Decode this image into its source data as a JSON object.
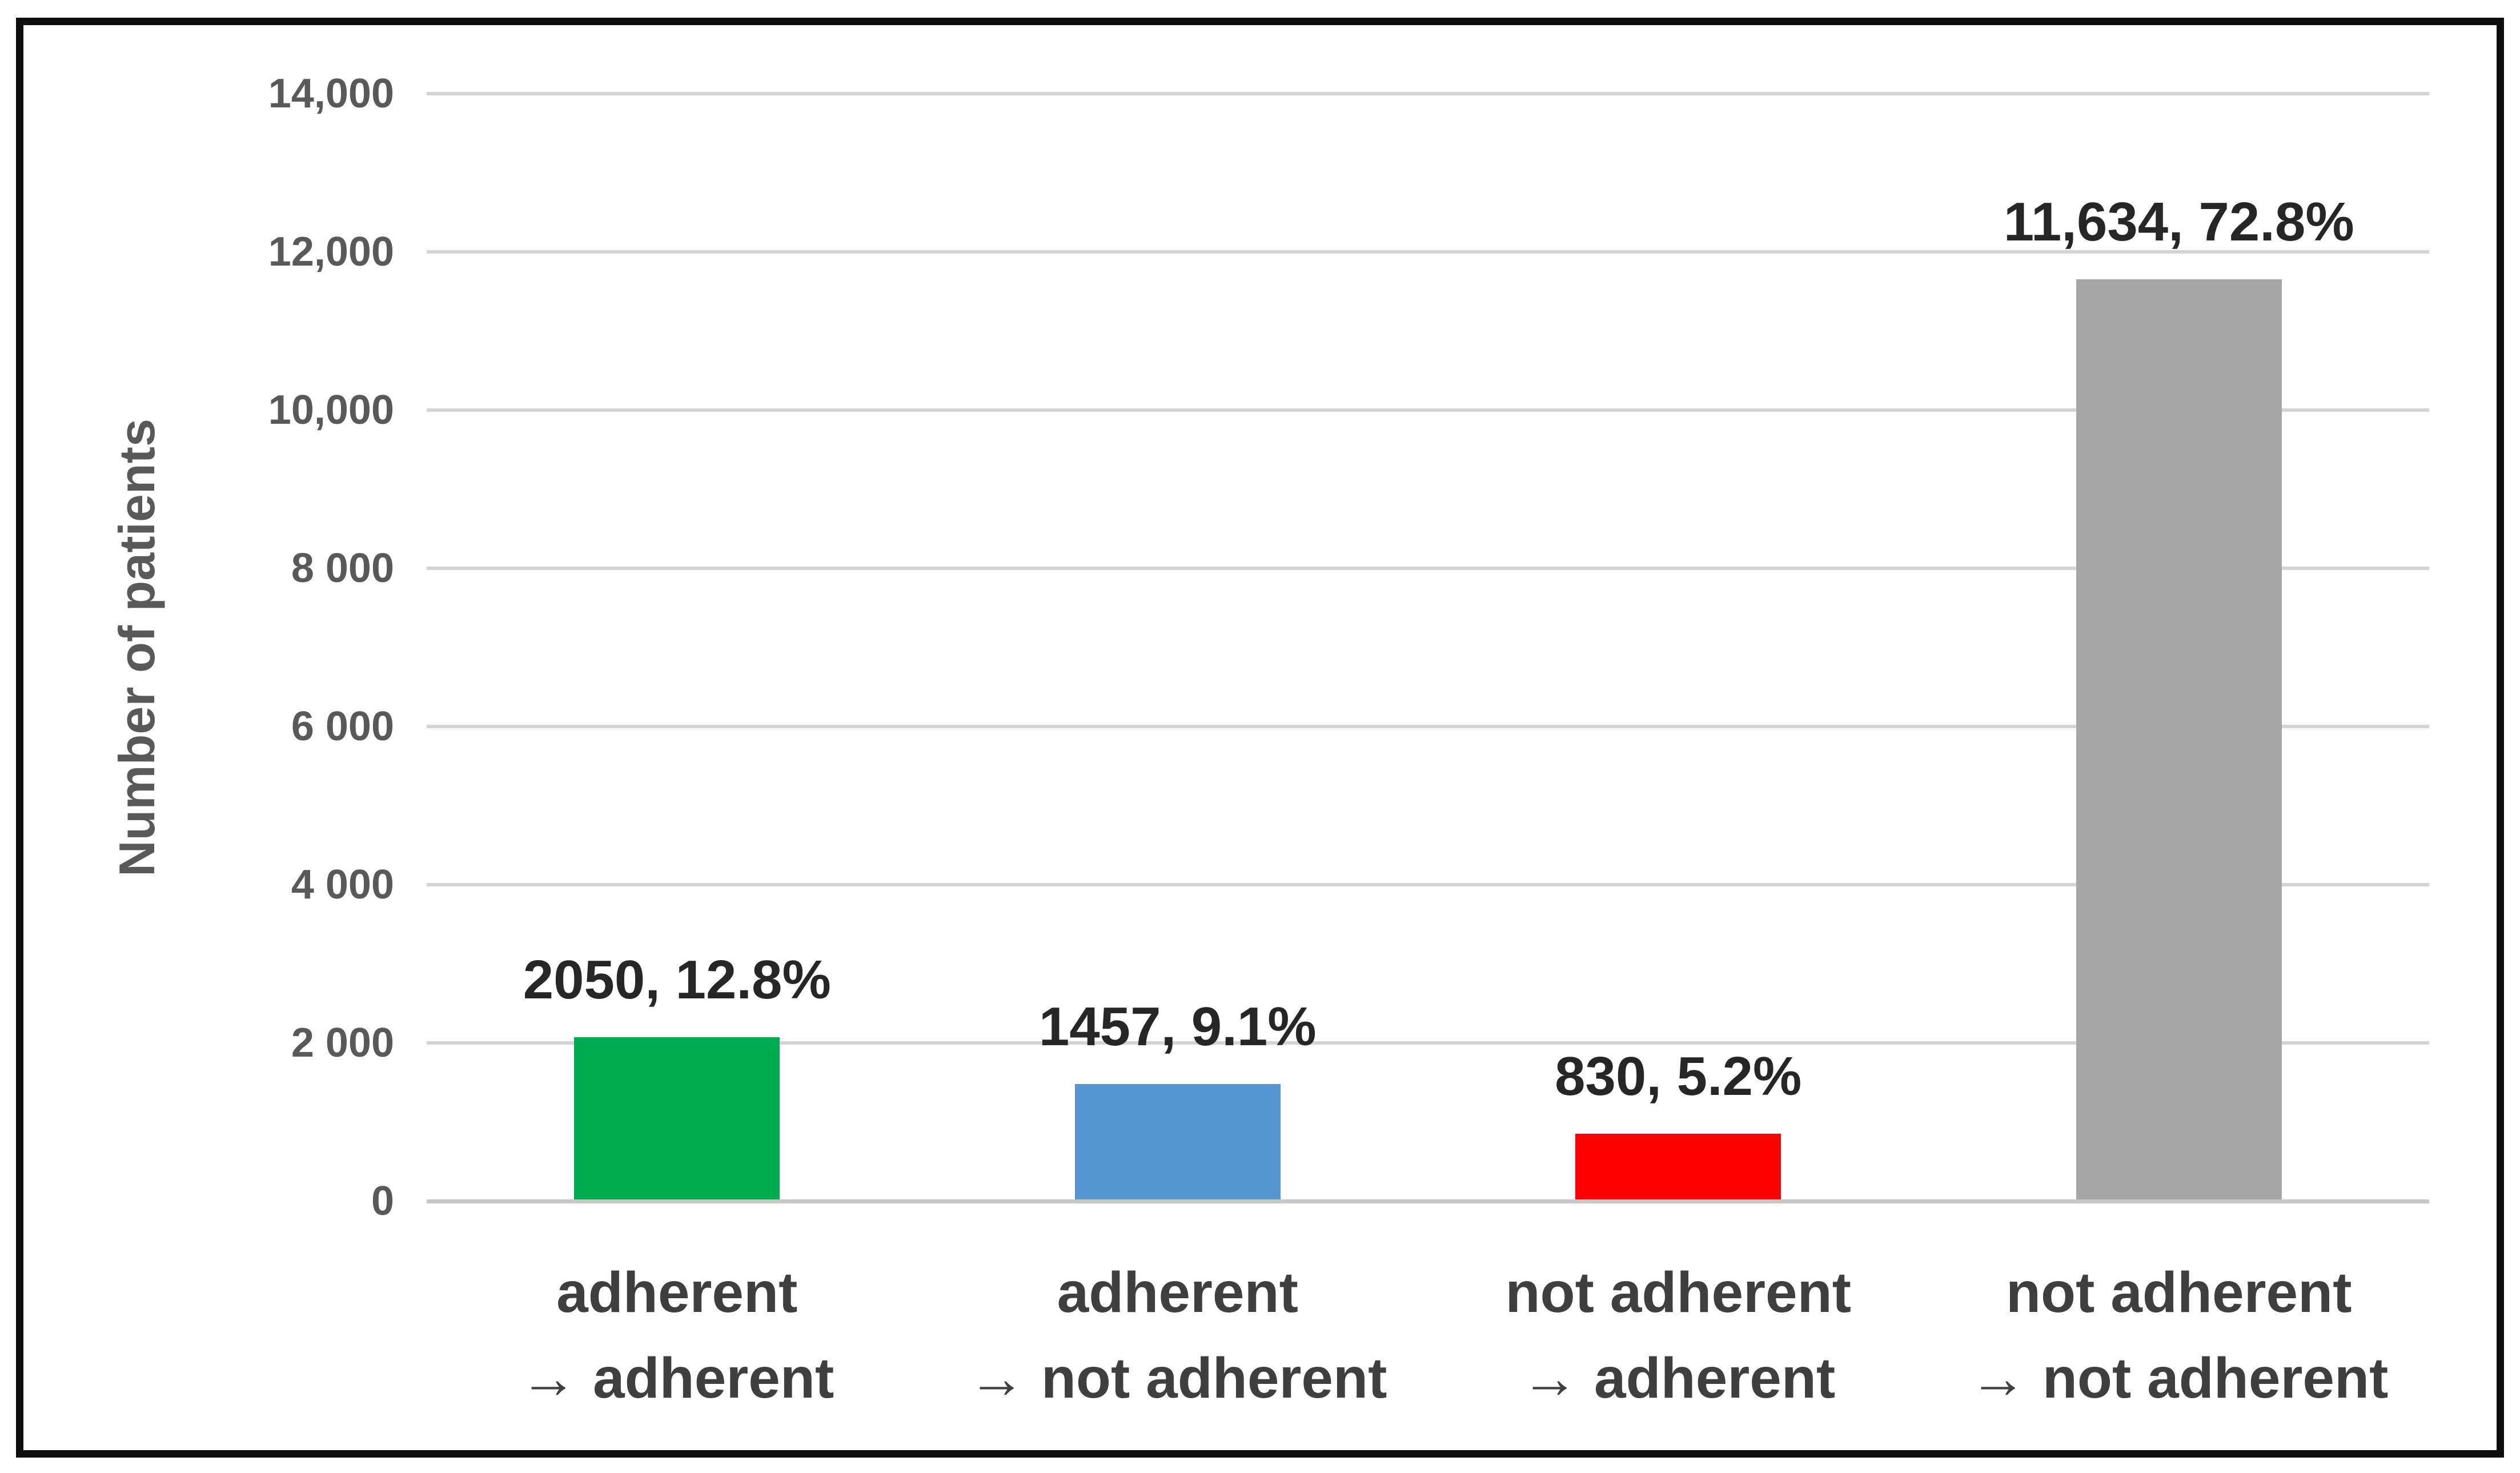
{
  "figure": {
    "background": "#ffffff",
    "border_color": "#0d0d0d"
  },
  "chart_data": {
    "type": "bar",
    "title": "",
    "ylabel": "Number of patients",
    "xlabel": "",
    "ylim": [
      0,
      14000
    ],
    "ytick_interval": 2000,
    "ytick_labels": [
      "0",
      "2 000",
      "4 000",
      "6 000",
      "8 000",
      "10,000",
      "12,000",
      "14,000"
    ],
    "grid": true,
    "legend": false,
    "categories": [
      "adherent → adherent",
      "adherent → not adherent",
      "not adherent → adherent",
      "not adherent → not adherent"
    ],
    "category_lines": [
      [
        "adherent",
        "→ adherent"
      ],
      [
        "adherent",
        "→ not adherent"
      ],
      [
        "not adherent",
        "→ adherent"
      ],
      [
        "not adherent",
        "→ not adherent"
      ]
    ],
    "values": [
      2050,
      1457,
      830,
      11634
    ],
    "percentages": [
      12.8,
      9.1,
      5.2,
      72.8
    ],
    "data_labels": [
      "2050, 12.8%",
      "1457, 9.1%",
      "830, 5.2%",
      "11,634, 72.8%"
    ],
    "bar_colors": [
      "#00AC50",
      "#5697D3",
      "#FF0000",
      "#A6A6A6"
    ],
    "colors": {
      "gridline": "#D4D4D4",
      "axis_line": "#C7C7C7",
      "tick_text": "#595959",
      "axis_title_text": "#595959",
      "data_label_text": "#262626",
      "category_text": "#3F3F3F"
    }
  }
}
